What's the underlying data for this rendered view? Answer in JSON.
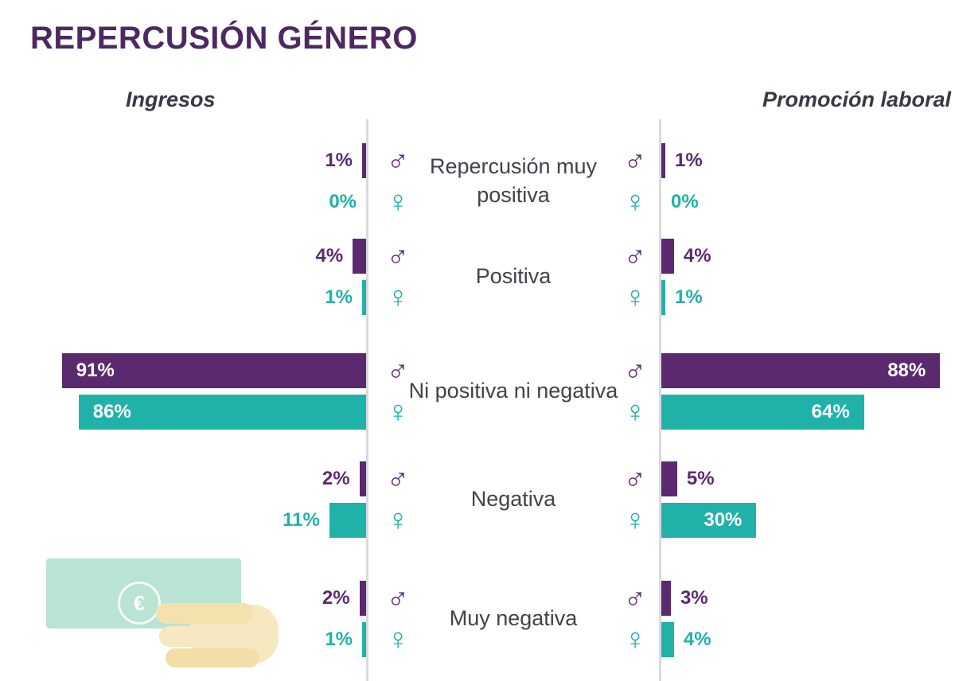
{
  "title": "REPERCUSIÓN GÉNERO",
  "headers": {
    "left": "Ingresos",
    "right": "Promoción laboral"
  },
  "symbols": {
    "male": "♂",
    "female": "♀",
    "euro": "€"
  },
  "colors": {
    "male": "#5b2a6e",
    "female": "#20b2a8",
    "title": "#4e2862",
    "category_text": "#454049",
    "axis": "#d9d9de",
    "label_inside": "#ffffff",
    "banknote": "#b9e3d2",
    "hand": "#f6e8c0"
  },
  "chart_data": {
    "type": "bar",
    "variant": "butterfly",
    "title": "REPERCUSIÓN GÉNERO",
    "value_format": "percent",
    "xlim": [
      0,
      100
    ],
    "grid": false,
    "legend": "gender symbols beside each baseline",
    "categories": [
      "Repercusión muy positiva",
      "Positiva",
      "Ni positiva ni negativa",
      "Negativa",
      "Muy negativa"
    ],
    "panels": [
      {
        "name": "Ingresos",
        "side": "left",
        "series": [
          {
            "name": "male",
            "symbol": "♂",
            "color": "#5b2a6e",
            "values": [
              1,
              4,
              91,
              2,
              2
            ]
          },
          {
            "name": "female",
            "symbol": "♀",
            "color": "#20b2a8",
            "values": [
              0,
              1,
              86,
              11,
              1
            ]
          }
        ]
      },
      {
        "name": "Promoción laboral",
        "side": "right",
        "series": [
          {
            "name": "male",
            "symbol": "♂",
            "color": "#5b2a6e",
            "values": [
              1,
              4,
              88,
              5,
              3
            ]
          },
          {
            "name": "female",
            "symbol": "♀",
            "color": "#20b2a8",
            "values": [
              0,
              1,
              64,
              30,
              4
            ]
          }
        ]
      }
    ]
  }
}
